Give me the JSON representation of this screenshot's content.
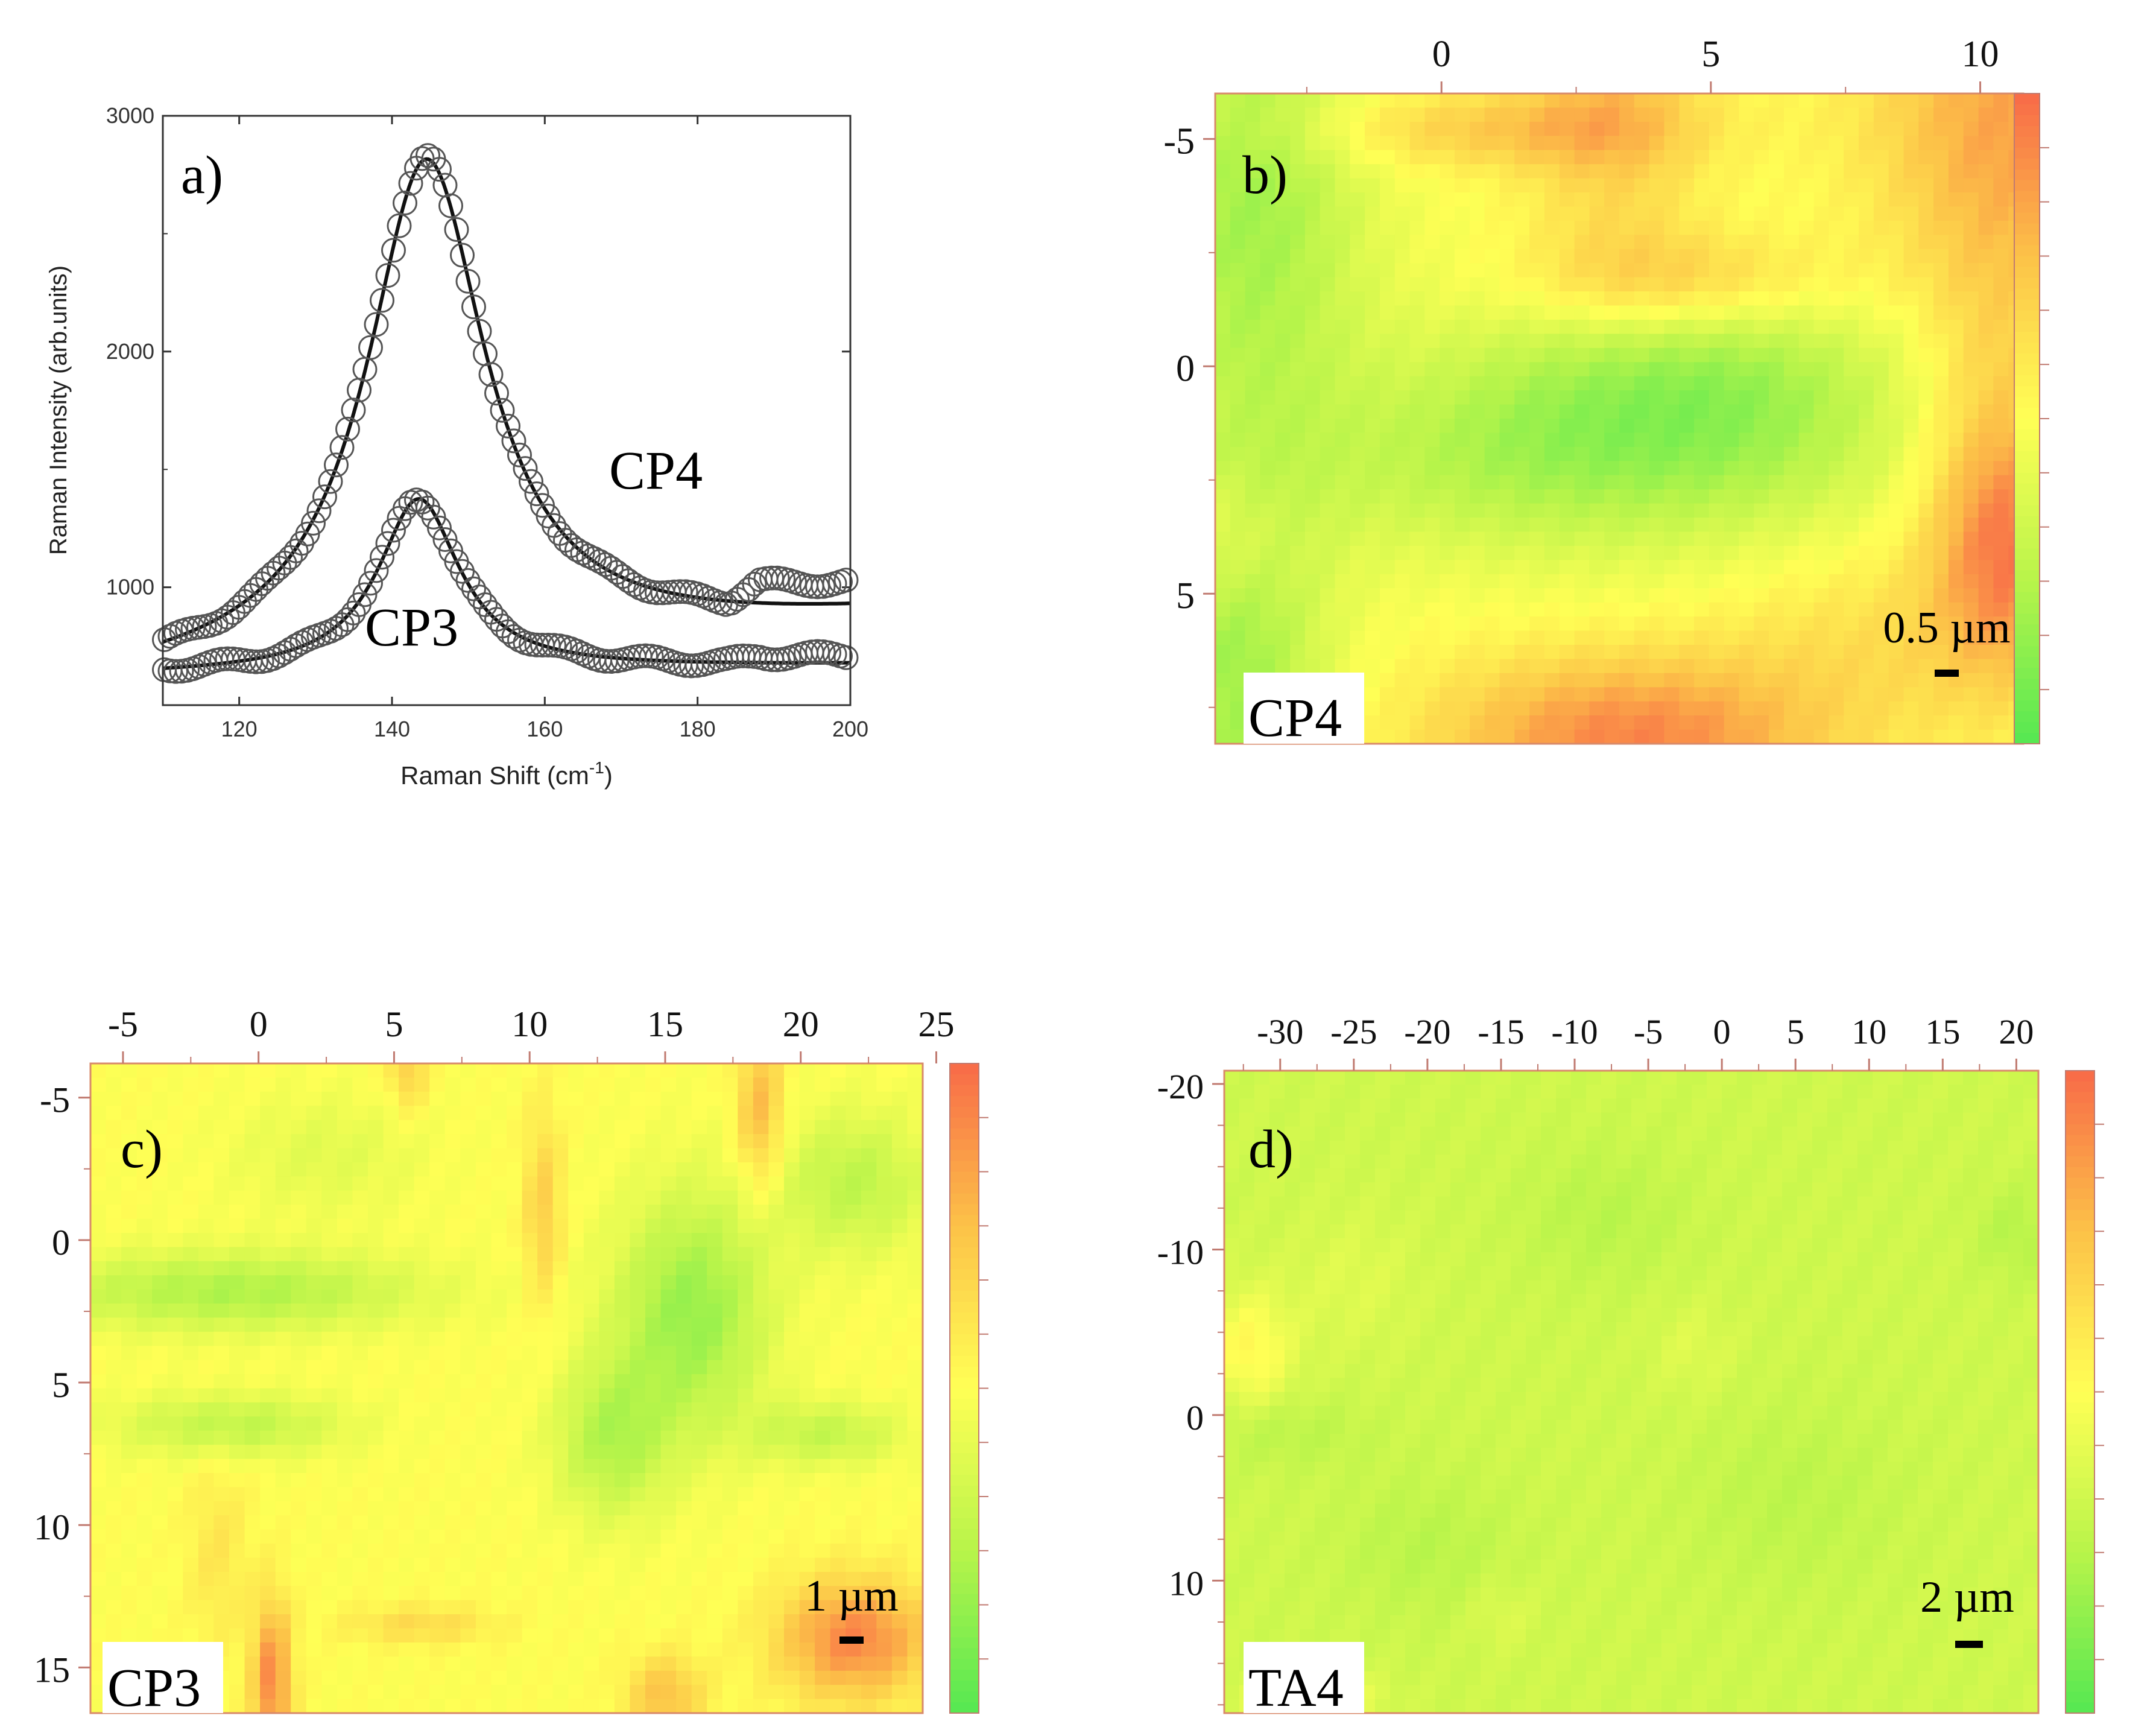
{
  "chart_data": [
    {
      "panel": "a)",
      "type": "line",
      "xlabel": "Raman Shift (cm",
      "xlabel_sup": "-1",
      "xlabel_end": ")",
      "ylabel": "Raman Intensity (arb.units)",
      "xlim": [
        110,
        200
      ],
      "ylim": [
        500,
        3000
      ],
      "xticks": [
        120,
        140,
        160,
        180,
        200
      ],
      "yticks": [
        1000,
        2000,
        3000
      ],
      "series": [
        {
          "name": "CP4",
          "marker": "open-circle",
          "fit": "lorentzian",
          "center": 144.5,
          "amplitude": 2100,
          "hwhm": 9.5,
          "baseline": 620,
          "slope": 2.8,
          "x_ref": 110
        },
        {
          "name": "CP3",
          "marker": "open-circle",
          "fit": "lorentzian",
          "center": 143.5,
          "amplitude": 730,
          "hwhm": 6.5,
          "baseline": 630,
          "slope": 0.45,
          "x_ref": 110
        }
      ]
    },
    {
      "panel": "b)",
      "type": "heatmap",
      "sample": "CP4",
      "scalebar": "0.5 µm",
      "x_ticks": [
        "0",
        "5",
        "10"
      ],
      "x_tick_values": [
        0,
        5,
        10
      ],
      "xlim": [
        -4.2,
        10.8
      ],
      "y_ticks": [
        "-5",
        "0",
        "5"
      ],
      "y_tick_values": [
        -5,
        0,
        5
      ],
      "ylim": [
        -6,
        8.3
      ],
      "colorscale": [
        "#55e852",
        "#b8f44a",
        "#ffff55",
        "#fcc248",
        "#f86a48"
      ],
      "base_level": 0.5,
      "blobs": [
        [
          0.8,
          -5.2,
          2.5,
          0.6,
          0.2
        ],
        [
          3.2,
          -6.0,
          1.2,
          3.0,
          0.22
        ],
        [
          4.5,
          -1.9,
          2.0,
          0.8,
          0.25
        ],
        [
          4.5,
          0.9,
          3.0,
          2.0,
          -0.38
        ],
        [
          0.3,
          2.2,
          2.5,
          1.5,
          -0.14
        ],
        [
          -3.5,
          -3.5,
          1.5,
          4.0,
          -0.3
        ],
        [
          -3.8,
          7.0,
          1.2,
          3.0,
          -0.3
        ],
        [
          3.5,
          8.2,
          2.5,
          1.3,
          0.42
        ],
        [
          10.5,
          4.0,
          1.0,
          2.0,
          0.42
        ],
        [
          10.5,
          -5.5,
          1.8,
          2.6,
          0.32
        ],
        [
          8.0,
          6.0,
          2.0,
          1.5,
          0.12
        ],
        [
          10.3,
          0.0,
          1.0,
          2.5,
          0.15
        ],
        [
          -4.0,
          3.8,
          0.8,
          1.0,
          0.12
        ]
      ]
    },
    {
      "panel": "c)",
      "type": "heatmap",
      "sample": "CP3",
      "scalebar": "1 µm",
      "x_ticks": [
        "-5",
        "0",
        "5",
        "10",
        "15",
        "20",
        "25"
      ],
      "x_tick_values": [
        -5,
        0,
        5,
        10,
        15,
        20,
        25
      ],
      "xlim": [
        -6.2,
        24.5
      ],
      "y_ticks": [
        "-5",
        "0",
        "5",
        "10",
        "15"
      ],
      "y_tick_values": [
        -5,
        0,
        5,
        10,
        15
      ],
      "ylim": [
        -6.2,
        16.6
      ],
      "colorscale": [
        "#55e852",
        "#b8f44a",
        "#ffff55",
        "#fcc248",
        "#f86a48"
      ],
      "base_level": 0.5,
      "blobs": [
        [
          -1.0,
          1.8,
          5.0,
          1.0,
          -0.27
        ],
        [
          -1.0,
          6.5,
          3.0,
          0.8,
          -0.22
        ],
        [
          16.0,
          2.5,
          2.0,
          3.0,
          -0.33
        ],
        [
          13.0,
          7.0,
          1.5,
          2.0,
          -0.25
        ],
        [
          22.0,
          -2.0,
          2.0,
          1.8,
          -0.22
        ],
        [
          21.0,
          6.8,
          2.0,
          0.8,
          -0.2
        ],
        [
          2.5,
          -3.0,
          2.5,
          1.5,
          -0.1
        ],
        [
          10.5,
          -1.0,
          0.5,
          2.5,
          0.2
        ],
        [
          18.5,
          -4.5,
          0.6,
          2.0,
          0.28
        ],
        [
          5.5,
          -6.0,
          0.5,
          1.0,
          0.2
        ],
        [
          22.0,
          14.0,
          2.0,
          1.5,
          0.42
        ],
        [
          0.5,
          15.5,
          0.5,
          2.0,
          0.42
        ],
        [
          15.0,
          16.0,
          1.0,
          1.0,
          0.25
        ],
        [
          6.0,
          13.5,
          2.0,
          0.5,
          0.15
        ],
        [
          -1.5,
          11.0,
          0.8,
          2.5,
          0.1
        ]
      ]
    },
    {
      "panel": "d)",
      "type": "heatmap",
      "sample": "TA4",
      "scalebar": "2 µm",
      "x_ticks": [
        "-30",
        "-25",
        "-20",
        "-15",
        "-10",
        "-5",
        "0",
        "5",
        "10",
        "15",
        "20"
      ],
      "x_tick_values": [
        -30,
        -25,
        -20,
        -15,
        -10,
        -5,
        0,
        5,
        10,
        15,
        20
      ],
      "xlim": [
        -33.8,
        21.5
      ],
      "y_ticks": [
        "-20",
        "-10",
        "0",
        "10"
      ],
      "y_tick_values": [
        -20,
        -10,
        0,
        10
      ],
      "ylim": [
        -20.8,
        18.0
      ],
      "colorscale": [
        "#55e852",
        "#b8f44a",
        "#ffff55",
        "#fcc248",
        "#f86a48"
      ],
      "base_level": 0.33,
      "blobs": [
        [
          -32.0,
          -4.0,
          2.0,
          2.5,
          0.2
        ],
        [
          -25.0,
          -8.0,
          3.0,
          3.0,
          0.06
        ],
        [
          -8.0,
          -12.0,
          4.0,
          3.0,
          -0.07
        ],
        [
          -20.0,
          8.0,
          4.0,
          3.0,
          -0.07
        ],
        [
          5.0,
          5.0,
          5.0,
          4.0,
          -0.06
        ],
        [
          20.0,
          -11.0,
          2.0,
          2.0,
          -0.08
        ],
        [
          -2.0,
          -4.0,
          2.0,
          2.0,
          0.06
        ],
        [
          -15.0,
          12.0,
          1.5,
          1.5,
          0.06
        ],
        [
          -28.0,
          17.0,
          3.0,
          1.0,
          0.18
        ],
        [
          -30.0,
          1.0,
          4.0,
          1.5,
          -0.07
        ]
      ]
    }
  ]
}
